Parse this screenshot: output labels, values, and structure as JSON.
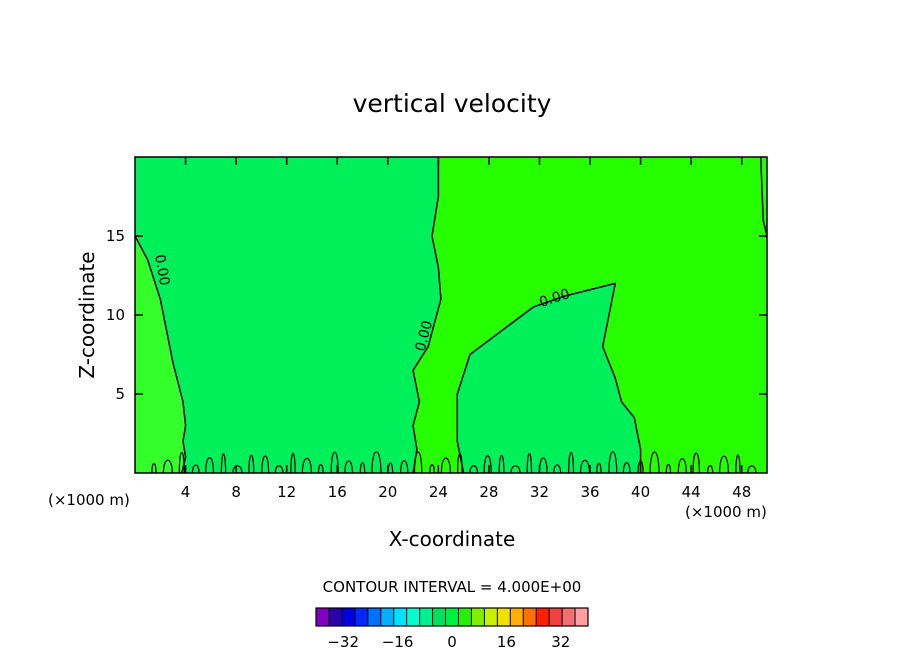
{
  "chart_data": {
    "type": "heatmap",
    "title": "vertical velocity",
    "xlabel": "X-coordinate",
    "ylabel": "Z-coordinate",
    "x_unit_left": "(×1000 m)",
    "x_unit_right": "(×1000 m)",
    "xlim": [
      0,
      50
    ],
    "ylim": [
      0,
      20
    ],
    "x_ticks": [
      4,
      8,
      12,
      16,
      20,
      24,
      28,
      32,
      36,
      40,
      44,
      48
    ],
    "y_ticks": [
      5,
      10,
      15
    ],
    "contour_interval_text": "CONTOUR INTERVAL = 4.000E+00",
    "contour_label": "0.00",
    "contour_levels": [
      0
    ],
    "colorbar": {
      "ticks": [
        -32,
        -16,
        0,
        16,
        32
      ],
      "tick_labels": [
        "−32",
        "−16",
        "0",
        "16",
        "32"
      ],
      "range": [
        -40,
        40
      ],
      "colors": [
        "#8000c0",
        "#2a00a8",
        "#0000e0",
        "#0028ff",
        "#0070ff",
        "#00b0ff",
        "#00e0ff",
        "#00ffd0",
        "#00f090",
        "#00e060",
        "#00f040",
        "#24f000",
        "#80f000",
        "#c8f000",
        "#f0e000",
        "#ffb000",
        "#ff7000",
        "#ff2000",
        "#f04040",
        "#f07070",
        "#ffa0a0"
      ]
    },
    "fields": {
      "background_color": "#26ff00",
      "negative_region_color": "#00f05a",
      "near_zero_region_color": "#35ff2a"
    },
    "regions": [
      {
        "value_sign": "negative",
        "description_x_range": [
          3,
          23
        ],
        "z_range": [
          0,
          20
        ]
      },
      {
        "value_sign": "negative",
        "description_x_range": [
          26,
          40
        ],
        "z_range": [
          0,
          12
        ]
      }
    ],
    "contours_xy": [
      [
        [
          0,
          15
        ],
        [
          1,
          13.5
        ],
        [
          2,
          11
        ],
        [
          2.5,
          9
        ],
        [
          3,
          7
        ],
        [
          3.8,
          4.5
        ],
        [
          4,
          3
        ],
        [
          3.8,
          2
        ],
        [
          4,
          1
        ],
        [
          3.7,
          0
        ]
      ],
      [
        [
          24,
          20
        ],
        [
          24,
          17.5
        ],
        [
          23.5,
          15
        ],
        [
          24,
          13
        ],
        [
          24.2,
          11
        ],
        [
          23.2,
          8
        ],
        [
          22,
          6.5
        ],
        [
          22.5,
          4.5
        ],
        [
          22,
          3
        ],
        [
          22.3,
          1.5
        ],
        [
          22,
          0
        ]
      ],
      [
        [
          26,
          0
        ],
        [
          25.5,
          2
        ],
        [
          25.5,
          5
        ],
        [
          26.5,
          7.5
        ],
        [
          29,
          9
        ],
        [
          31.5,
          10.5
        ],
        [
          34,
          11.2
        ],
        [
          38,
          12
        ],
        [
          37.5,
          10
        ],
        [
          37,
          8
        ],
        [
          38,
          6
        ],
        [
          38.5,
          4.5
        ],
        [
          39.5,
          3.5
        ],
        [
          40,
          1.5
        ],
        [
          40,
          0
        ]
      ],
      [
        [
          49.5,
          20
        ],
        [
          49.7,
          16
        ],
        [
          50,
          15
        ]
      ]
    ]
  }
}
